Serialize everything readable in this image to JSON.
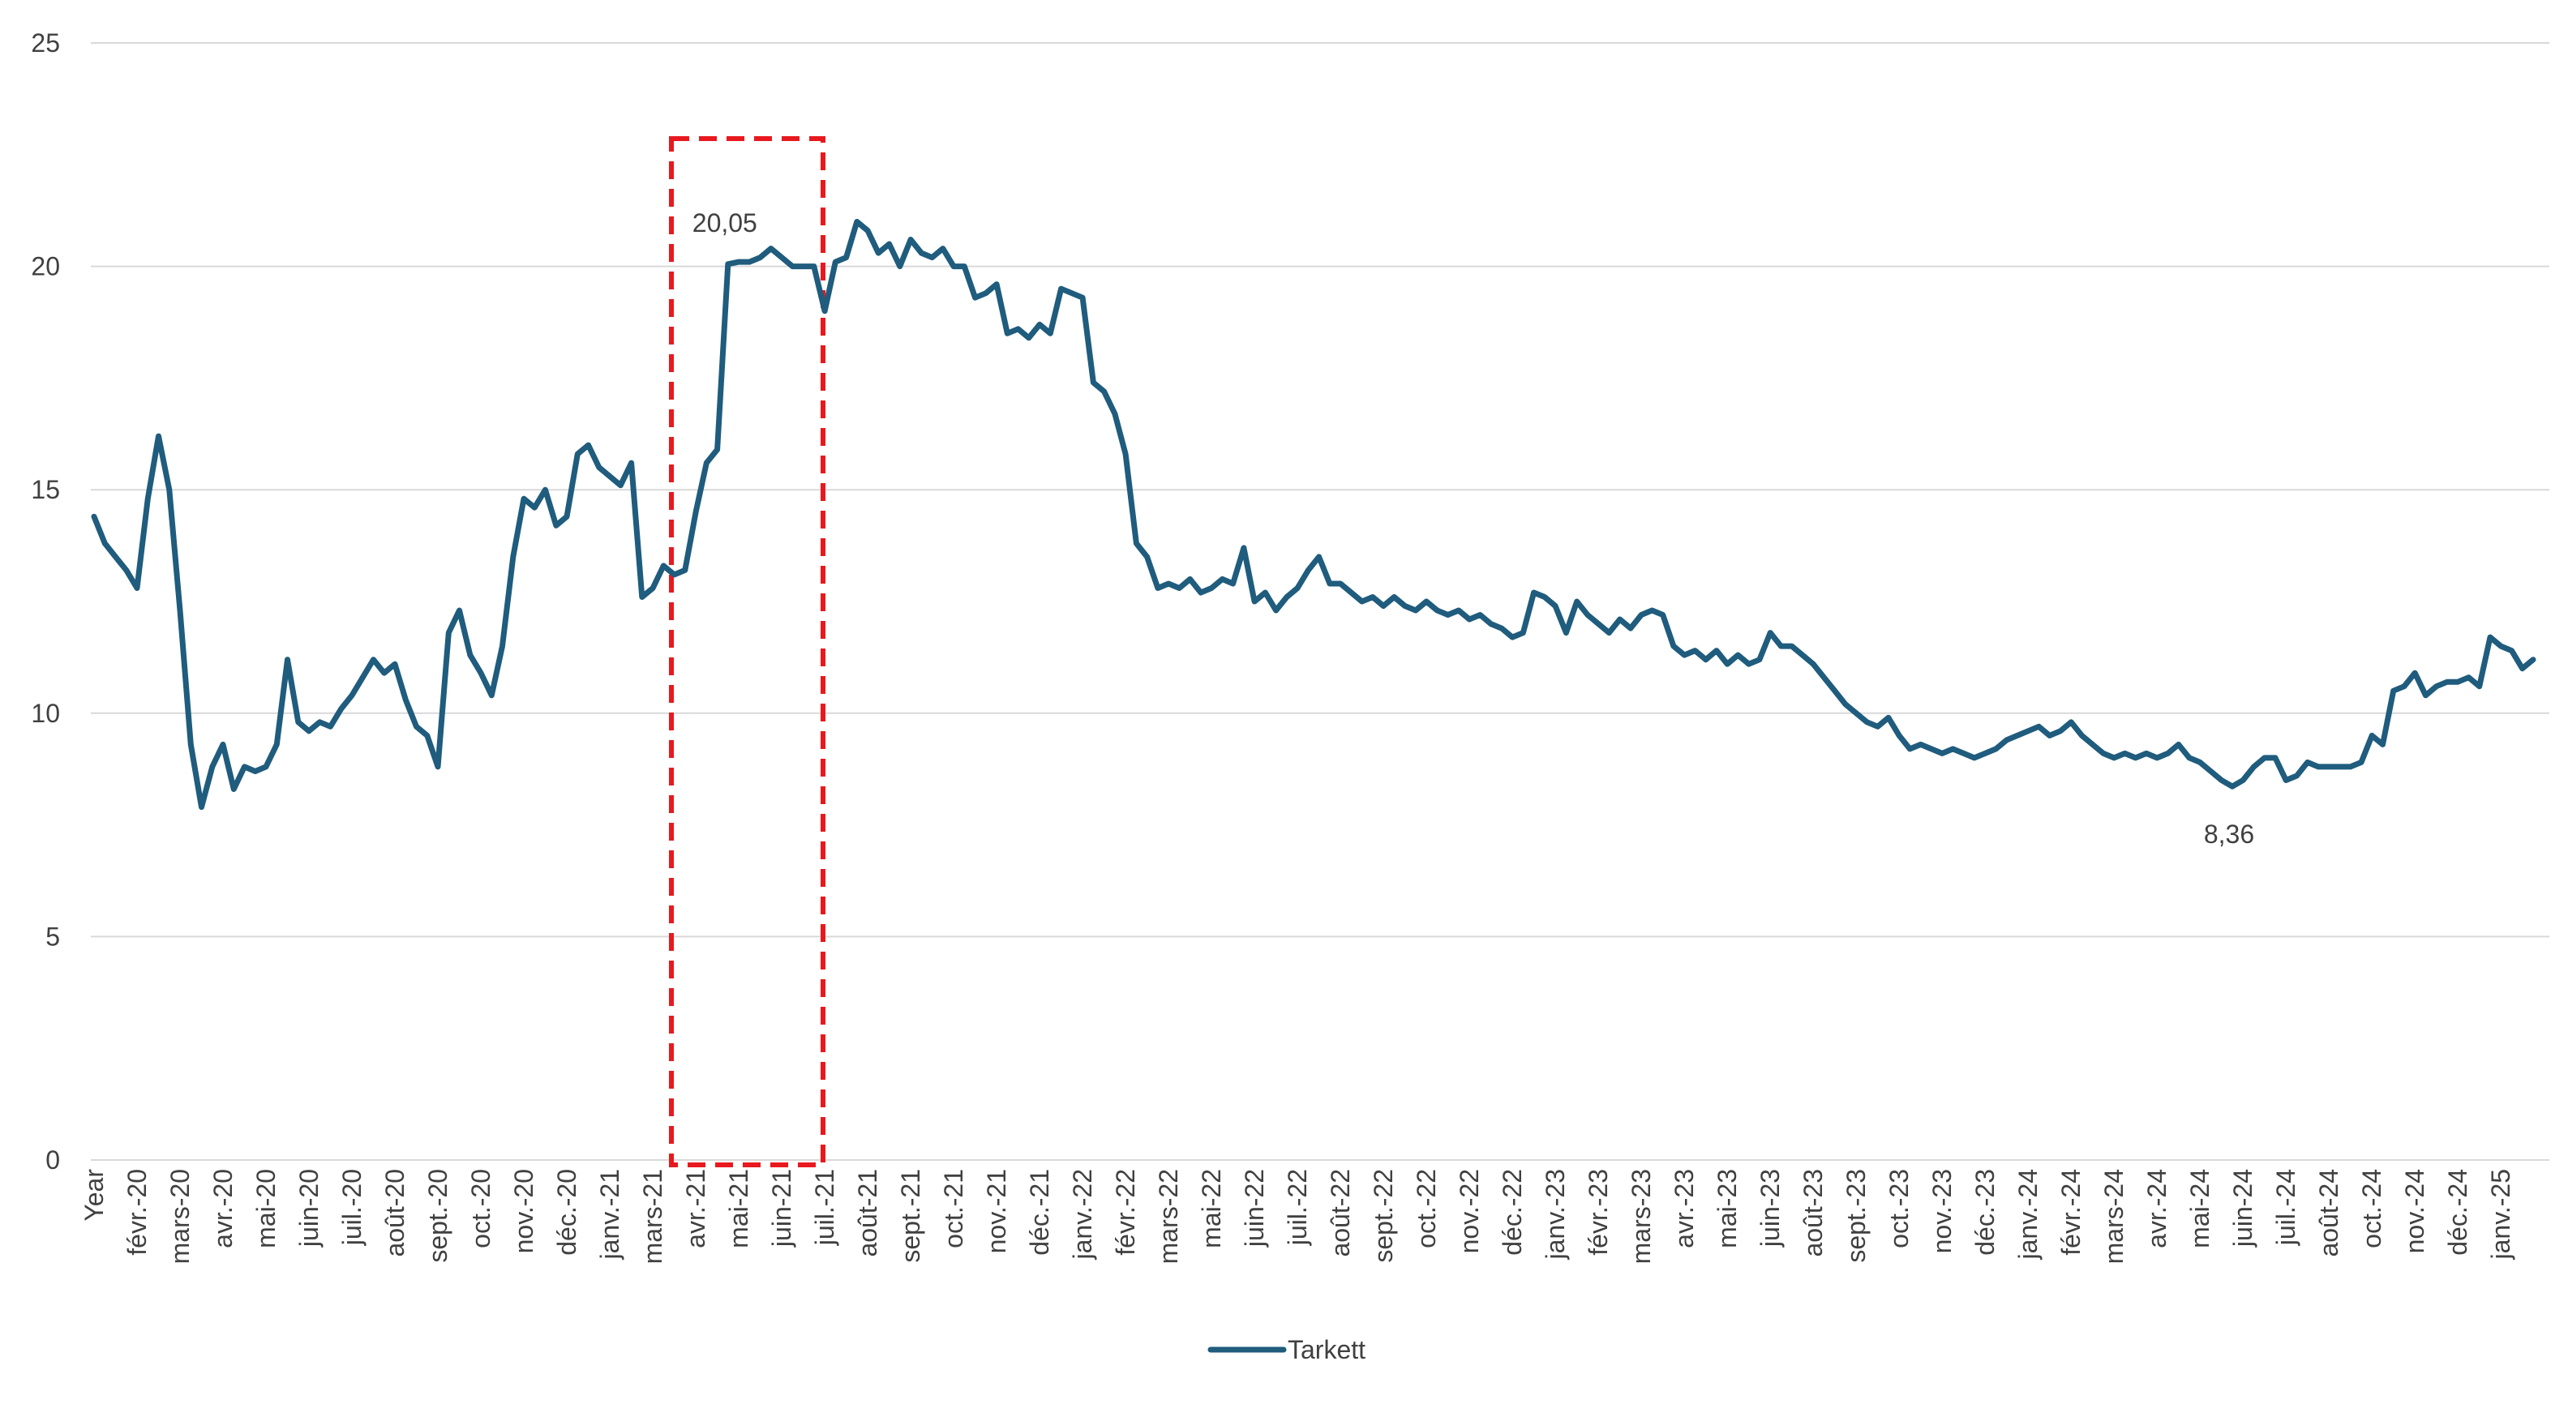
{
  "chart_data": {
    "type": "line",
    "categories": [
      "Year",
      null,
      null,
      null,
      "févr.-20",
      null,
      null,
      null,
      "mars-20",
      null,
      null,
      null,
      "avr.-20",
      null,
      null,
      null,
      "mai-20",
      null,
      null,
      null,
      "juin-20",
      null,
      null,
      null,
      "juil.-20",
      null,
      null,
      null,
      "août-20",
      null,
      null,
      null,
      "sept.-20",
      null,
      null,
      null,
      "oct.-20",
      null,
      null,
      null,
      "nov.-20",
      null,
      null,
      null,
      "déc.-20",
      null,
      null,
      null,
      "janv.-21",
      null,
      null,
      null,
      "mars-21",
      null,
      null,
      null,
      "avr.-21",
      null,
      null,
      null,
      "mai-21",
      null,
      null,
      null,
      "juin-21",
      null,
      null,
      null,
      "juil.-21",
      null,
      null,
      null,
      "août-21",
      null,
      null,
      null,
      "sept.-21",
      null,
      null,
      null,
      "oct.-21",
      null,
      null,
      null,
      "nov.-21",
      null,
      null,
      null,
      "déc.-21",
      null,
      null,
      null,
      "janv.-22",
      null,
      null,
      null,
      "févr.-22",
      null,
      null,
      null,
      "mars-22",
      null,
      null,
      null,
      "mai-22",
      null,
      null,
      null,
      "juin-22",
      null,
      null,
      null,
      "juil.-22",
      null,
      null,
      null,
      "août-22",
      null,
      null,
      null,
      "sept.-22",
      null,
      null,
      null,
      "oct.-22",
      null,
      null,
      null,
      "nov.-22",
      null,
      null,
      null,
      "déc.-22",
      null,
      null,
      null,
      "janv.-23",
      null,
      null,
      null,
      "févr.-23",
      null,
      null,
      null,
      "mars-23",
      null,
      null,
      null,
      "avr.-23",
      null,
      null,
      null,
      "mai-23",
      null,
      null,
      null,
      "juin-23",
      null,
      null,
      null,
      "août-23",
      null,
      null,
      null,
      "sept.-23",
      null,
      null,
      null,
      "oct.-23",
      null,
      null,
      null,
      "nov.-23",
      null,
      null,
      null,
      "déc.-23",
      null,
      null,
      null,
      "janv.-24",
      null,
      null,
      null,
      "févr.-24",
      null,
      null,
      null,
      "mars-24",
      null,
      null,
      null,
      "avr.-24",
      null,
      null,
      null,
      "mai-24",
      null,
      null,
      null,
      "juin-24",
      null,
      null,
      null,
      "juil.-24",
      null,
      null,
      null,
      "août-24",
      null,
      null,
      null,
      "oct.-24",
      null,
      null,
      null,
      "nov.-24",
      null,
      null,
      null,
      "déc.-24",
      null,
      null,
      null,
      "janv.-25",
      null,
      null,
      null
    ],
    "series": [
      {
        "name": "Tarkett",
        "color": "#1f5c7d",
        "values": [
          14.4,
          13.8,
          13.5,
          13.2,
          12.8,
          14.8,
          16.2,
          15.0,
          12.3,
          9.3,
          7.9,
          8.8,
          9.3,
          8.3,
          8.8,
          8.7,
          8.8,
          9.3,
          11.2,
          9.8,
          9.6,
          9.8,
          9.7,
          10.1,
          10.4,
          10.8,
          11.2,
          10.9,
          11.1,
          10.3,
          9.7,
          9.5,
          8.8,
          11.8,
          12.3,
          11.3,
          10.9,
          10.4,
          11.5,
          13.5,
          14.8,
          14.6,
          15.0,
          14.2,
          14.4,
          15.8,
          16.0,
          15.5,
          15.3,
          15.1,
          15.6,
          12.6,
          12.8,
          13.3,
          13.1,
          13.2,
          14.5,
          15.6,
          15.9,
          20.05,
          20.1,
          20.1,
          20.2,
          20.4,
          20.2,
          20.0,
          20.0,
          20.0,
          19.0,
          20.1,
          20.2,
          21.0,
          20.8,
          20.3,
          20.5,
          20.0,
          20.6,
          20.3,
          20.2,
          20.4,
          20.0,
          20.0,
          19.3,
          19.4,
          19.6,
          18.5,
          18.6,
          18.4,
          18.7,
          18.5,
          19.5,
          19.4,
          19.3,
          17.4,
          17.2,
          16.7,
          15.8,
          13.8,
          13.5,
          12.8,
          12.9,
          12.8,
          13.0,
          12.7,
          12.8,
          13.0,
          12.9,
          13.7,
          12.5,
          12.7,
          12.3,
          12.6,
          12.8,
          13.2,
          13.5,
          12.9,
          12.9,
          12.7,
          12.5,
          12.6,
          12.4,
          12.6,
          12.4,
          12.3,
          12.5,
          12.3,
          12.2,
          12.3,
          12.1,
          12.2,
          12.0,
          11.9,
          11.7,
          11.8,
          12.7,
          12.6,
          12.4,
          11.8,
          12.5,
          12.2,
          12.0,
          11.8,
          12.1,
          11.9,
          12.2,
          12.3,
          12.2,
          11.5,
          11.3,
          11.4,
          11.2,
          11.4,
          11.1,
          11.3,
          11.1,
          11.2,
          11.8,
          11.5,
          11.5,
          11.3,
          11.1,
          10.8,
          10.5,
          10.2,
          10.0,
          9.8,
          9.7,
          9.9,
          9.5,
          9.2,
          9.3,
          9.2,
          9.1,
          9.2,
          9.1,
          9.0,
          9.1,
          9.2,
          9.4,
          9.5,
          9.6,
          9.7,
          9.5,
          9.6,
          9.8,
          9.5,
          9.3,
          9.1,
          9.0,
          9.1,
          9.0,
          9.1,
          9.0,
          9.1,
          9.3,
          9.0,
          8.9,
          8.7,
          8.5,
          8.36,
          8.5,
          8.8,
          9.0,
          9.0,
          8.5,
          8.6,
          8.9,
          8.8,
          8.8,
          8.8,
          8.8,
          8.9,
          9.5,
          9.3,
          10.5,
          10.6,
          10.9,
          10.4,
          10.6,
          10.7,
          10.7,
          10.8,
          10.6,
          11.7,
          11.5,
          11.4,
          11.0,
          11.2
        ],
        "value_labels": [
          null,
          null,
          null,
          null,
          null,
          null,
          null,
          null,
          null,
          null,
          null,
          null,
          null,
          null,
          null,
          null,
          null,
          null,
          null,
          null,
          null,
          null,
          null,
          null,
          null,
          null,
          null,
          null,
          null,
          null,
          null,
          null,
          null,
          null,
          null,
          null,
          null,
          null,
          null,
          null,
          null,
          null,
          null,
          null,
          null,
          null,
          null,
          null,
          null,
          null,
          null,
          null,
          null,
          null,
          null,
          null,
          null,
          null,
          null,
          "20,05",
          null,
          null,
          null,
          null,
          null,
          null,
          null,
          null,
          null,
          null,
          null,
          null,
          null,
          null,
          null,
          null,
          null,
          null,
          null,
          null,
          null,
          null,
          null,
          null,
          null,
          null,
          null,
          null,
          null,
          null,
          null,
          null,
          null,
          null,
          null,
          null,
          null,
          null,
          null,
          null,
          null,
          null,
          null,
          null,
          null,
          null,
          null,
          null,
          null,
          null,
          null,
          null,
          null,
          null,
          null,
          null,
          null,
          null,
          null,
          null,
          null,
          null,
          null,
          null,
          null,
          null,
          null,
          null,
          null,
          null,
          null,
          null,
          null,
          null,
          null,
          null,
          null,
          null,
          null,
          null,
          null,
          null,
          null,
          null,
          null,
          null,
          null,
          null,
          null,
          null,
          null,
          null,
          null,
          null,
          null,
          null,
          null,
          null,
          null,
          null,
          null,
          null,
          null,
          null,
          null,
          null,
          null,
          null,
          null,
          null,
          null,
          null,
          null,
          null,
          null,
          null,
          null,
          null,
          null,
          null,
          null,
          null,
          null,
          null,
          null,
          null,
          null,
          null,
          null,
          null,
          null,
          null,
          null,
          null,
          null,
          null,
          null,
          null,
          null,
          "8,36",
          null,
          null,
          null,
          null,
          null,
          null,
          null,
          null,
          null,
          null,
          null,
          null,
          null,
          null,
          null,
          null,
          null,
          null,
          null,
          null,
          null,
          null,
          null,
          null,
          null,
          null,
          null,
          null
        ]
      }
    ],
    "ylim": [
      0,
      25
    ],
    "yticks": [
      0,
      5,
      10,
      15,
      20,
      25
    ],
    "grid": true,
    "legend": "bottom"
  }
}
